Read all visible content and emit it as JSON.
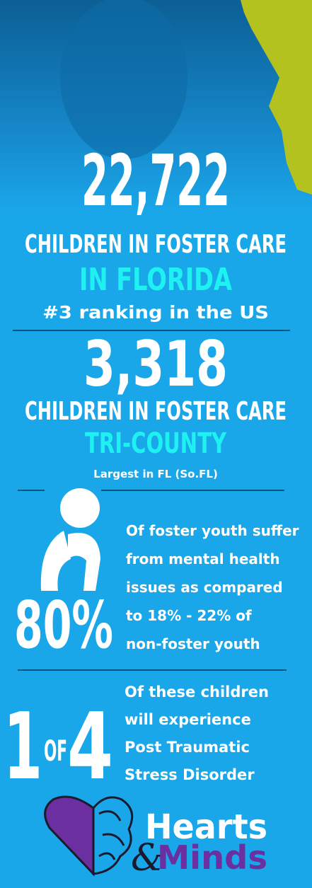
{
  "florida": {
    "number": "22,722",
    "label": "CHILDREN IN FOSTER CARE",
    "place": "IN FLORIDA",
    "note": "#3 ranking in the US"
  },
  "tri_county": {
    "number": "3,318",
    "label": "CHILDREN IN FOSTER CARE",
    "place": "TRI-COUNTY",
    "note": "Largest in FL (So.FL)"
  },
  "mental_health": {
    "number": "80%",
    "lines": [
      "Of foster youth suffer",
      "from mental health",
      "issues as compared",
      "to 18% - 22% of",
      "non-foster youth"
    ]
  },
  "ptsd": {
    "one": "1",
    "of": "OF",
    "four": "4",
    "lines": [
      "Of these children",
      "will experience",
      "Post Traumatic",
      "Stress Disorder"
    ]
  },
  "logo": {
    "hearts": "Hearts",
    "amp": "&",
    "minds": "Minds"
  }
}
